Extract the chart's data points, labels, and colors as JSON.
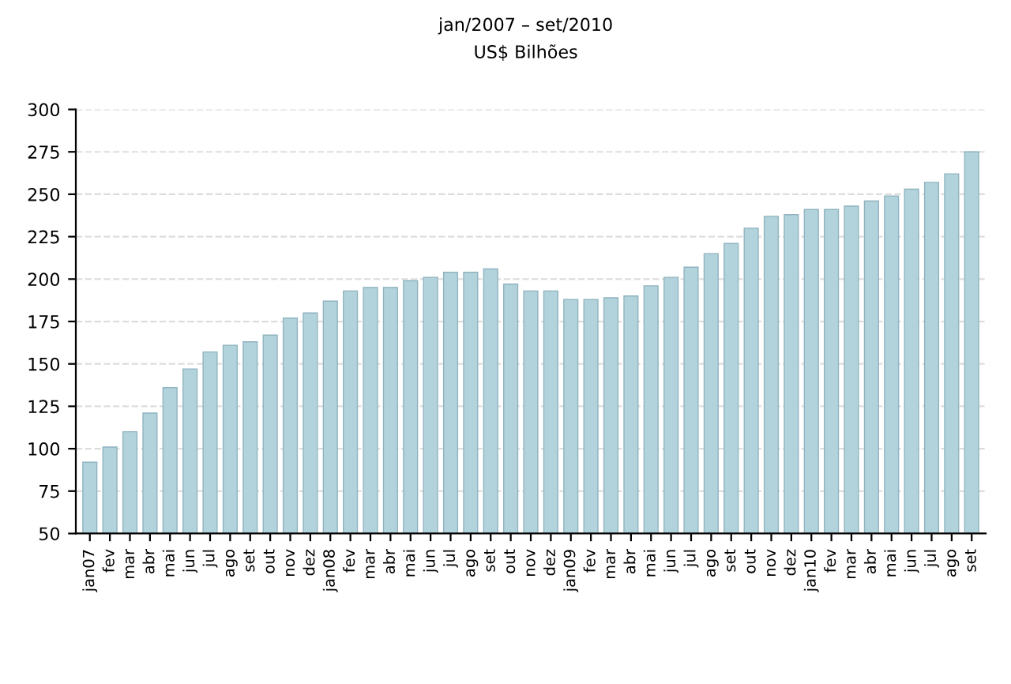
{
  "chart_data": {
    "type": "bar",
    "title": "jan/2007 – set/2010",
    "subtitle": "US$ Bilhões",
    "categories": [
      "jan07",
      "fev",
      "mar",
      "abr",
      "mai",
      "jun",
      "jul",
      "ago",
      "set",
      "out",
      "nov",
      "dez",
      "jan08",
      "fev",
      "mar",
      "abr",
      "mai",
      "jun",
      "jul",
      "ago",
      "set",
      "out",
      "nov",
      "dez",
      "jan09",
      "fev",
      "mar",
      "abr",
      "mai",
      "jun",
      "jul",
      "ago",
      "set",
      "out",
      "nov",
      "dez",
      "jan10",
      "fev",
      "mar",
      "abr",
      "mai",
      "jun",
      "jul",
      "ago",
      "set"
    ],
    "values": [
      92,
      101,
      110,
      121,
      136,
      147,
      157,
      161,
      163,
      167,
      177,
      180,
      187,
      193,
      195,
      195,
      199,
      201,
      204,
      204,
      206,
      197,
      193,
      193,
      188,
      188,
      189,
      190,
      196,
      201,
      207,
      215,
      221,
      230,
      237,
      238,
      241,
      241,
      243,
      246,
      249,
      253,
      257,
      262,
      275
    ],
    "color": "#b3d3dc",
    "ylim": [
      50,
      300
    ],
    "yticks": [
      50,
      75,
      100,
      125,
      150,
      175,
      200,
      225,
      250,
      275,
      300
    ],
    "grid": "y"
  }
}
